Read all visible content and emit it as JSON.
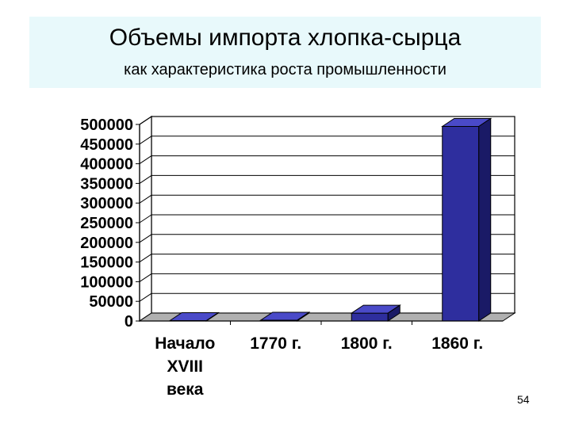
{
  "slide": {
    "title": "Объемы импорта хлопка-сырца",
    "subtitle": "как характеристика роста  промышленности",
    "page_number": "54"
  },
  "colors": {
    "bar_front": "#2e2e9e",
    "bar_top": "#4a4ac8",
    "bar_side": "#1a1a66",
    "title_background": "#e8f9fb"
  },
  "chart_data": {
    "type": "bar",
    "categories": [
      [
        "Начало",
        "XVIII",
        "века"
      ],
      [
        "1770 г."
      ],
      [
        "1800 г."
      ],
      [
        "1860 г."
      ]
    ],
    "values": [
      1000,
      2000,
      20000,
      495000
    ],
    "yticks": [
      "0",
      "50000",
      "100000",
      "150000",
      "200000",
      "250000",
      "300000",
      "350000",
      "400000",
      "450000",
      "500000"
    ],
    "ylim": [
      0,
      500000
    ],
    "grid": true,
    "legend": "none",
    "style": "3d"
  }
}
